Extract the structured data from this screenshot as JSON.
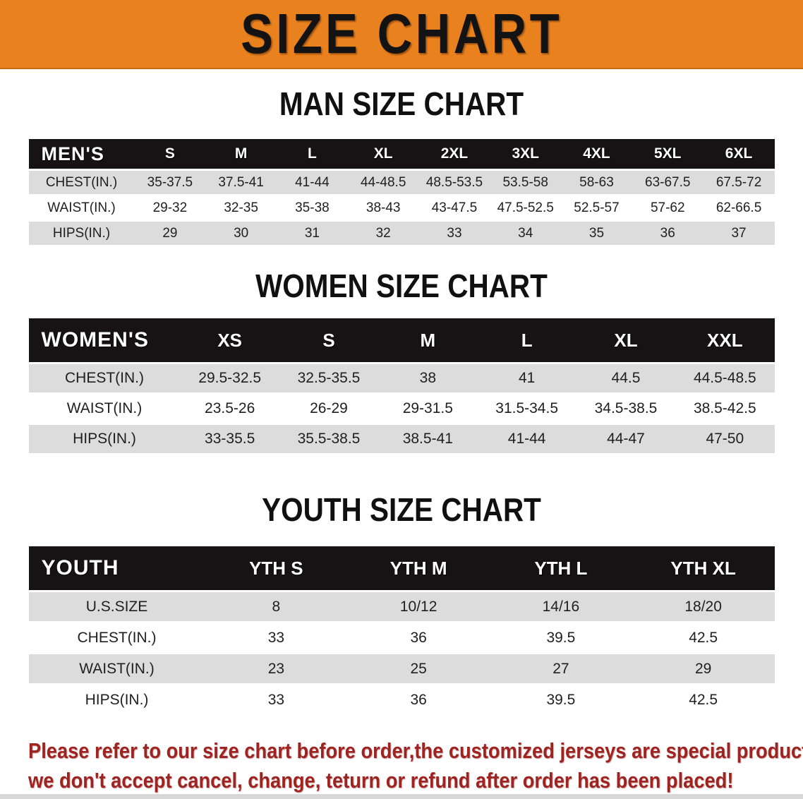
{
  "banner": {
    "title": "SIZE CHART"
  },
  "colors": {
    "banner_bg": "#E8811E",
    "table_header_bg": "#171314",
    "row_alt_bg": "#DCDCDC",
    "footer_text": "#9E2421"
  },
  "sections": [
    {
      "id": "mens",
      "heading": "MAN SIZE CHART",
      "table": {
        "header_label": "MEN'S",
        "columns": [
          "S",
          "M",
          "L",
          "XL",
          "2XL",
          "3XL",
          "4XL",
          "5XL",
          "6XL"
        ],
        "rows": [
          {
            "label": "CHEST(IN.)",
            "values": [
              "35-37.5",
              "37.5-41",
              "41-44",
              "44-48.5",
              "48.5-53.5",
              "53.5-58",
              "58-63",
              "63-67.5",
              "67.5-72"
            ]
          },
          {
            "label": "WAIST(IN.)",
            "values": [
              "29-32",
              "32-35",
              "35-38",
              "38-43",
              "43-47.5",
              "47.5-52.5",
              "52.5-57",
              "57-62",
              "62-66.5"
            ]
          },
          {
            "label": "HIPS(IN.)",
            "values": [
              "29",
              "30",
              "31",
              "32",
              "33",
              "34",
              "35",
              "36",
              "37"
            ]
          }
        ]
      }
    },
    {
      "id": "womens",
      "heading": "WOMEN SIZE CHART",
      "table": {
        "header_label": "WOMEN'S",
        "columns": [
          "XS",
          "S",
          "M",
          "L",
          "XL",
          "XXL"
        ],
        "rows": [
          {
            "label": "CHEST(IN.)",
            "values": [
              "29.5-32.5",
              "32.5-35.5",
              "38",
              "41",
              "44.5",
              "44.5-48.5"
            ]
          },
          {
            "label": "WAIST(IN.)",
            "values": [
              "23.5-26",
              "26-29",
              "29-31.5",
              "31.5-34.5",
              "34.5-38.5",
              "38.5-42.5"
            ]
          },
          {
            "label": "HIPS(IN.)",
            "values": [
              "33-35.5",
              "35.5-38.5",
              "38.5-41",
              "41-44",
              "44-47",
              "47-50"
            ]
          }
        ]
      }
    },
    {
      "id": "youth",
      "heading": "YOUTH SIZE CHART",
      "table": {
        "header_label": "YOUTH",
        "columns": [
          "YTH S",
          "YTH M",
          "YTH L",
          "YTH XL"
        ],
        "rows": [
          {
            "label": "U.S.SIZE",
            "values": [
              "8",
              "10/12",
              "14/16",
              "18/20"
            ]
          },
          {
            "label": "CHEST(IN.)",
            "values": [
              "33",
              "36",
              "39.5",
              "42.5"
            ]
          },
          {
            "label": "WAIST(IN.)",
            "values": [
              "23",
              "25",
              "27",
              "29"
            ]
          },
          {
            "label": "HIPS(IN.)",
            "values": [
              "33",
              "36",
              "39.5",
              "42.5"
            ]
          }
        ]
      }
    }
  ],
  "footer": {
    "line1": "Please refer to our size chart before order,the customized jerseys are special products,",
    "line2": "we don't accept cancel, change, teturn or refund after order has been placed!"
  }
}
